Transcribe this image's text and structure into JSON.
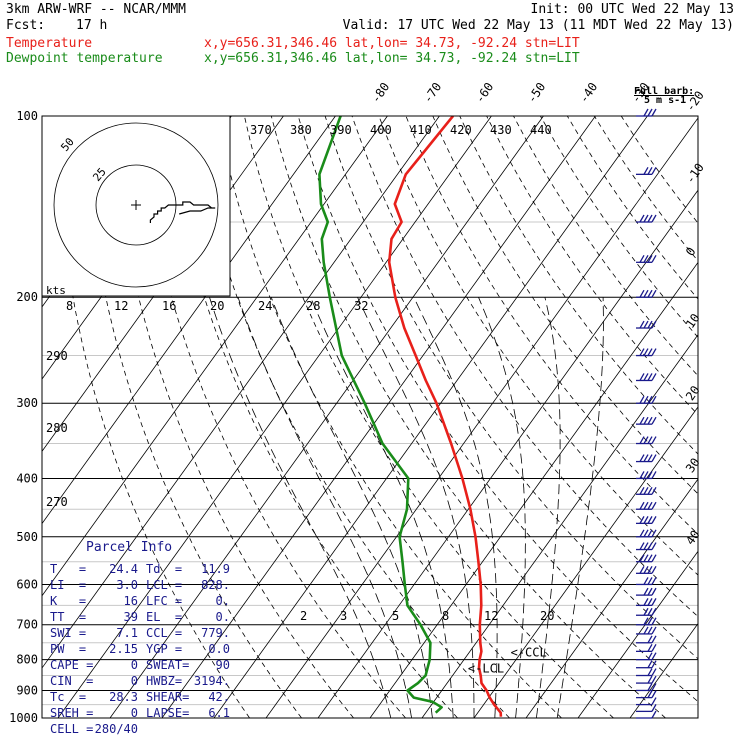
{
  "header": {
    "model": "3km ARW-WRF -- NCAR/MMM",
    "init": "Init: 00 UTC Wed 22 May 13",
    "fcst_label": "Fcst:",
    "fcst_value": "17 h",
    "valid": "Valid: 17 UTC Wed 22 May 13 (11 MDT Wed 22 May 13)",
    "temp_label": "Temperature",
    "temp_info": "x,y=656.31,346.46   lat,lon= 34.73, -92.24  stn=LIT",
    "dew_label": "Dewpoint temperature",
    "dew_info": "x,y=656.31,346.46   lat,lon= 34.73, -92.24  stn=LIT",
    "temp_color": "#e8201a",
    "dew_color": "#1a8c1a"
  },
  "barb_legend": {
    "line1": "Full barb:",
    "line2": "5 m s-1"
  },
  "chart_data": {
    "type": "line",
    "title": "Skew-T log-P sounding",
    "pressure_levels": [
      100,
      200,
      300,
      400,
      500,
      600,
      700,
      800,
      900,
      1000
    ],
    "isotherm_labels": [
      "-80",
      "-70",
      "-60",
      "-50",
      "-40",
      "-30",
      "-20",
      "-10",
      "0",
      "10",
      "20",
      "30",
      "40"
    ],
    "theta_labels": [
      "370",
      "380",
      "390",
      "400",
      "410",
      "420",
      "430",
      "440"
    ],
    "theta_low_labels": [
      "290",
      "280",
      "270"
    ],
    "mixing_ratio_upper": [
      "8",
      "12",
      "16",
      "20",
      "24",
      "28",
      "32"
    ],
    "mixing_ratio_lower": [
      "2",
      "3",
      "5",
      "8",
      "12",
      "20"
    ],
    "hodograph": {
      "rings": [
        "25",
        "50"
      ],
      "units": "kts"
    },
    "annotations": [
      "<-CCL",
      "<-LCL"
    ],
    "series": [
      {
        "name": "Temperature",
        "color": "#e8201a",
        "points": [
          [
            995,
            25.0
          ],
          [
            980,
            24.4
          ],
          [
            950,
            22.0
          ],
          [
            925,
            20.2
          ],
          [
            900,
            18.6
          ],
          [
            875,
            16.6
          ],
          [
            850,
            15.4
          ],
          [
            825,
            14.0
          ],
          [
            800,
            13.0
          ],
          [
            775,
            12.2
          ],
          [
            750,
            10.8
          ],
          [
            700,
            8.2
          ],
          [
            650,
            5.8
          ],
          [
            600,
            2.8
          ],
          [
            550,
            -0.8
          ],
          [
            500,
            -4.8
          ],
          [
            450,
            -9.6
          ],
          [
            400,
            -15.4
          ],
          [
            350,
            -22.4
          ],
          [
            300,
            -30.8
          ],
          [
            275,
            -36.0
          ],
          [
            250,
            -41.4
          ],
          [
            225,
            -47.4
          ],
          [
            200,
            -53.4
          ],
          [
            175,
            -59.4
          ],
          [
            160,
            -62.2
          ],
          [
            150,
            -62.6
          ],
          [
            140,
            -66.4
          ],
          [
            125,
            -68.4
          ],
          [
            115,
            -68.0
          ],
          [
            100,
            -67.4
          ]
        ]
      },
      {
        "name": "Dewpoint temperature",
        "color": "#1a8c1a",
        "points": [
          [
            980,
            11.9
          ],
          [
            960,
            12.3
          ],
          [
            940,
            9.8
          ],
          [
            925,
            5.6
          ],
          [
            900,
            3.4
          ],
          [
            875,
            4.4
          ],
          [
            850,
            4.8
          ],
          [
            800,
            3.4
          ],
          [
            750,
            1.2
          ],
          [
            700,
            -3.2
          ],
          [
            650,
            -8.4
          ],
          [
            600,
            -11.8
          ],
          [
            550,
            -15.4
          ],
          [
            500,
            -19.4
          ],
          [
            450,
            -21.8
          ],
          [
            400,
            -25.8
          ],
          [
            350,
            -35.6
          ],
          [
            300,
            -44.6
          ],
          [
            250,
            -55.6
          ],
          [
            200,
            -66.0
          ],
          [
            175,
            -72.0
          ],
          [
            160,
            -75.6
          ],
          [
            150,
            -76.8
          ],
          [
            140,
            -80.6
          ],
          [
            125,
            -85.0
          ],
          [
            100,
            -89.0
          ]
        ]
      }
    ],
    "wind_profile": [
      {
        "p": 1000,
        "u": 4,
        "v": 4
      },
      {
        "p": 975,
        "u": 4,
        "v": 5
      },
      {
        "p": 950,
        "u": 4,
        "v": 5
      },
      {
        "p": 925,
        "u": 5,
        "v": 6
      },
      {
        "p": 900,
        "u": 5,
        "v": 6
      },
      {
        "p": 875,
        "u": 5,
        "v": 7
      },
      {
        "p": 850,
        "u": 6,
        "v": 7
      },
      {
        "p": 825,
        "u": 6,
        "v": 8
      },
      {
        "p": 800,
        "u": 7,
        "v": 8
      },
      {
        "p": 775,
        "u": 7,
        "v": 9
      },
      {
        "p": 750,
        "u": 8,
        "v": 9
      },
      {
        "p": 725,
        "u": 9,
        "v": 10
      },
      {
        "p": 700,
        "u": 10,
        "v": 10
      },
      {
        "p": 675,
        "u": 11,
        "v": 10
      },
      {
        "p": 650,
        "u": 12,
        "v": 10
      },
      {
        "p": 625,
        "u": 13,
        "v": 10
      },
      {
        "p": 600,
        "u": 13,
        "v": 11
      },
      {
        "p": 575,
        "u": 14,
        "v": 11
      },
      {
        "p": 550,
        "u": 14,
        "v": 11
      },
      {
        "p": 525,
        "u": 15,
        "v": 11
      },
      {
        "p": 500,
        "u": 16,
        "v": 10
      },
      {
        "p": 475,
        "u": 16,
        "v": 10
      },
      {
        "p": 450,
        "u": 16,
        "v": 10
      },
      {
        "p": 425,
        "u": 17,
        "v": 10
      },
      {
        "p": 400,
        "u": 18,
        "v": 10
      },
      {
        "p": 375,
        "u": 19,
        "v": 10
      },
      {
        "p": 350,
        "u": 20,
        "v": 10
      },
      {
        "p": 325,
        "u": 21,
        "v": 9
      },
      {
        "p": 300,
        "u": 22,
        "v": 9
      },
      {
        "p": 275,
        "u": 22,
        "v": 9
      },
      {
        "p": 250,
        "u": 22,
        "v": 9
      },
      {
        "p": 225,
        "u": 22,
        "v": 9
      },
      {
        "p": 200,
        "u": 21,
        "v": 9
      },
      {
        "p": 175,
        "u": 20,
        "v": 9
      },
      {
        "p": 150,
        "u": 18,
        "v": 8
      },
      {
        "p": 125,
        "u": 15,
        "v": 8
      },
      {
        "p": 100,
        "u": 12,
        "v": 7
      }
    ],
    "xlim": [
      -40,
      40
    ],
    "ylim": [
      1000,
      100
    ],
    "yscale": "log"
  },
  "parcel_info": {
    "title": "Parcel Info",
    "rows": [
      [
        "T   =",
        "24.4",
        "Td  =",
        "11.9"
      ],
      [
        "LI  =",
        "3.0",
        "LCL =",
        "828."
      ],
      [
        "K   =",
        "16",
        "LFC =",
        "0."
      ],
      [
        "TT  =",
        "39",
        "EL  =",
        "0."
      ],
      [
        "SWI =",
        "7.1",
        "CCL =",
        "779."
      ],
      [
        "PW  =",
        "2.15",
        "YGP =",
        "0.0"
      ],
      [
        "CAPE =",
        "0",
        "SWEAT=",
        "90"
      ],
      [
        "CIN  =",
        "0",
        "HWBZ=",
        "3194."
      ],
      [
        "Tc  =",
        "28.3",
        "SHEAR=",
        "42."
      ],
      [
        "SREH =",
        "0",
        "LAPSE=",
        "6.1"
      ],
      [
        "CELL =",
        "280/40",
        "",
        ""
      ]
    ]
  }
}
